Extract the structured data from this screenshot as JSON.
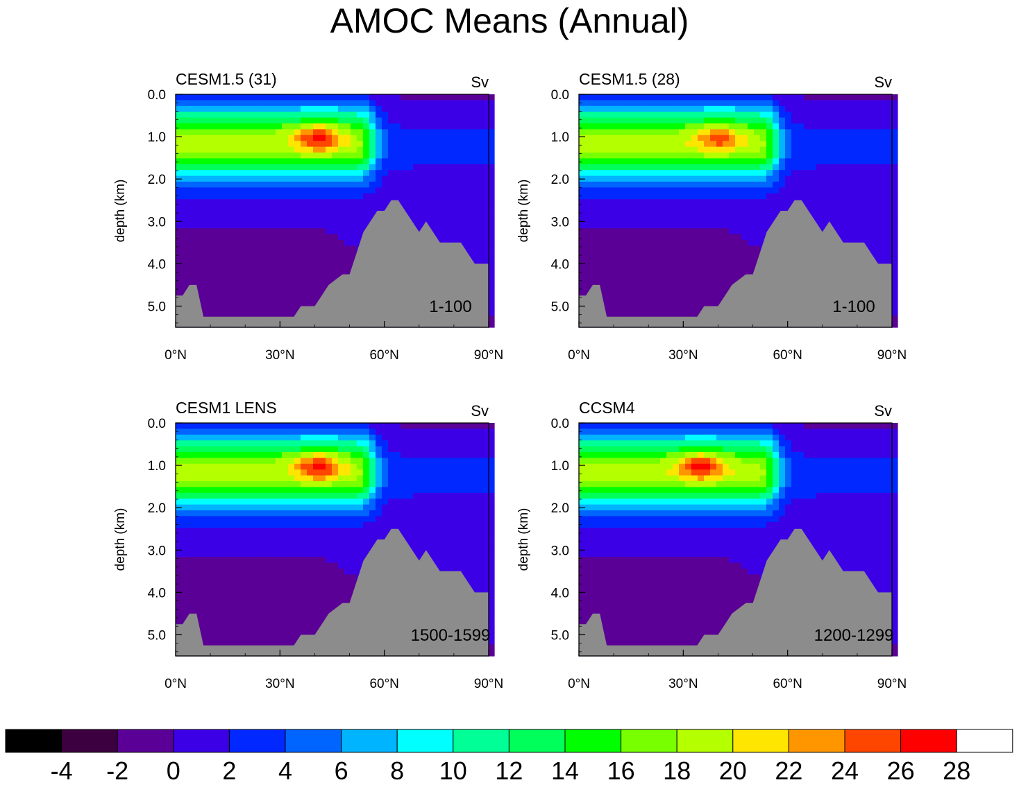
{
  "title": "AMOC Means (Annual)",
  "chart_data": {
    "type": "heatmap",
    "units": "Sv",
    "x_axis": {
      "ticks": [
        "0°N",
        "30°N",
        "60°N",
        "90°N"
      ],
      "range": [
        0,
        90
      ]
    },
    "y_axis": {
      "label": "depth (km)",
      "ticks": [
        "0.0",
        "1.0",
        "2.0",
        "3.0",
        "4.0",
        "5.0"
      ],
      "range": [
        0,
        5.5
      ]
    },
    "panels": [
      {
        "name": "CESM1.5 (31)",
        "units": "Sv",
        "period": "1-100",
        "max_sv": 25,
        "max_lat": 41,
        "max_depth": 1.0
      },
      {
        "name": "CESM1.5 (28)",
        "units": "Sv",
        "period": "1-100",
        "max_sv": 23,
        "max_lat": 40,
        "max_depth": 1.0
      },
      {
        "name": "CESM1 LENS",
        "units": "Sv",
        "period": "1500-1599",
        "max_sv": 25,
        "max_lat": 41,
        "max_depth": 1.0
      },
      {
        "name": "CCSM4",
        "units": "Sv",
        "period": "1200-1299",
        "max_sv": 25,
        "max_lat": 35,
        "max_depth": 1.0
      }
    ],
    "colorbar": {
      "labels": [
        "-4",
        "-2",
        "0",
        "2",
        "4",
        "6",
        "8",
        "10",
        "12",
        "14",
        "16",
        "18",
        "20",
        "22",
        "24",
        "26",
        "28"
      ],
      "colors": [
        "#000000",
        "#3c0041",
        "#5a0096",
        "#3c00e6",
        "#0028ff",
        "#0064ff",
        "#00b4ff",
        "#00ffff",
        "#00ff96",
        "#00ff5a",
        "#00ff00",
        "#78ff00",
        "#b4ff00",
        "#ffe600",
        "#ff9600",
        "#ff4600",
        "#ff0000",
        "#ffffff"
      ]
    }
  }
}
